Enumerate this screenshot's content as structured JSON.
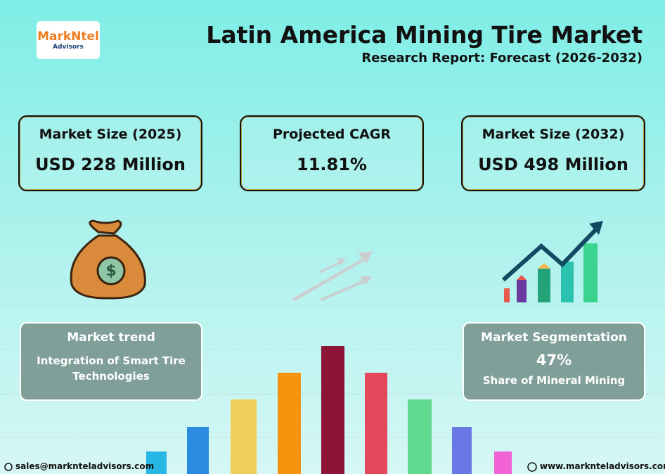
{
  "logo": {
    "name": "MarkNtel",
    "tagline": "Advisors"
  },
  "header": {
    "title": "Latin America Mining Tire Market",
    "subtitle": "Research Report: Forecast (2026-2032)"
  },
  "stats": [
    {
      "label": "Market Size (2025)",
      "value": "USD 228 Million"
    },
    {
      "label": "Projected CAGR",
      "value": "11.81%"
    },
    {
      "label": "Market Size (2032)",
      "value": "USD 498 Million"
    }
  ],
  "trend": {
    "title": "Market trend",
    "text": "Integration of Smart Tire Technologies"
  },
  "segmentation": {
    "title": "Market Segmentation",
    "value": "47%",
    "text": "Share of Mineral Mining"
  },
  "footer": {
    "email": "sales@marknteladvisors.com",
    "website": "www.marknteladvisors.com"
  }
}
